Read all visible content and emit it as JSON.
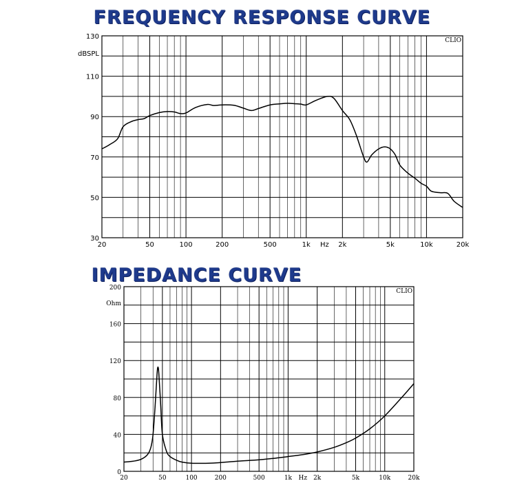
{
  "chart_data": [
    {
      "type": "line",
      "title": "FREQUENCY RESPONSE CURVE",
      "ylabel": "dBSPL",
      "xlabel": "Hz",
      "watermark": "CLIO",
      "x_scale": "log",
      "xlim": [
        20,
        20000
      ],
      "ylim": [
        30,
        130
      ],
      "x_tick_values": [
        20,
        50,
        100,
        200,
        500,
        1000,
        2000,
        5000,
        10000,
        20000
      ],
      "x_tick_labels": [
        "20",
        "50",
        "100",
        "200",
        "500",
        "1k",
        "2k",
        "5k",
        "10k",
        "20k"
      ],
      "y_tick_values": [
        30,
        50,
        70,
        90,
        110,
        130
      ],
      "y_tick_labels": [
        "30",
        "50",
        "70",
        "90",
        "110",
        "130"
      ],
      "grid": true,
      "series": [
        {
          "x": [
            20,
            23,
            27,
            30,
            35,
            40,
            45,
            50,
            60,
            70,
            80,
            90,
            100,
            120,
            150,
            170,
            200,
            250,
            300,
            350,
            400,
            500,
            600,
            700,
            800,
            900,
            1000,
            1200,
            1500,
            1700,
            2000,
            2300,
            2600,
            3000,
            3200,
            3500,
            4000,
            4500,
            5000,
            5500,
            6000,
            7000,
            8000,
            9000,
            10000,
            11000,
            13000,
            15000,
            17000,
            20000
          ],
          "y": [
            74,
            76,
            79,
            85,
            87.5,
            88.5,
            89,
            90.5,
            92,
            92.5,
            92.3,
            91.5,
            91.8,
            94.5,
            96,
            95.5,
            95.8,
            95.6,
            94.2,
            93,
            94,
            95.8,
            96.3,
            96.6,
            96.4,
            96.2,
            95.8,
            98,
            100,
            99,
            93,
            88.5,
            81,
            70,
            67.5,
            71,
            74,
            75,
            74,
            71,
            66,
            62,
            59.5,
            57,
            55.5,
            53,
            52.3,
            52,
            48,
            45
          ]
        }
      ]
    },
    {
      "type": "line",
      "title": "IMPEDANCE CURVE",
      "ylabel": "Ohm",
      "xlabel": "Hz",
      "watermark": "CLIO",
      "x_scale": "log",
      "xlim": [
        20,
        20000
      ],
      "ylim": [
        0,
        200
      ],
      "x_tick_values": [
        20,
        50,
        100,
        200,
        500,
        1000,
        2000,
        5000,
        10000,
        20000
      ],
      "x_tick_labels": [
        "20",
        "50",
        "100",
        "200",
        "500",
        "1k",
        "2k",
        "5k",
        "10k",
        "20k"
      ],
      "y_tick_values": [
        0,
        40,
        80,
        120,
        160,
        200
      ],
      "y_tick_labels": [
        "0",
        "40",
        "80",
        "120",
        "160",
        "200"
      ],
      "grid": true,
      "series": [
        {
          "x": [
            20,
            25,
            30,
            35,
            38,
            40,
            42,
            44,
            45,
            46,
            48,
            50,
            55,
            60,
            70,
            80,
            100,
            150,
            200,
            300,
            500,
            700,
            1000,
            1500,
            2000,
            3000,
            4000,
            5000,
            7000,
            10000,
            15000,
            20000
          ],
          "y": [
            10,
            11,
            13,
            18,
            26,
            40,
            70,
            105,
            113,
            105,
            72,
            40,
            22,
            16,
            12,
            10,
            8.8,
            8.8,
            9.5,
            11,
            12.5,
            14,
            16,
            18.5,
            21,
            26,
            31,
            36,
            46,
            60,
            80,
            95
          ]
        }
      ]
    }
  ]
}
